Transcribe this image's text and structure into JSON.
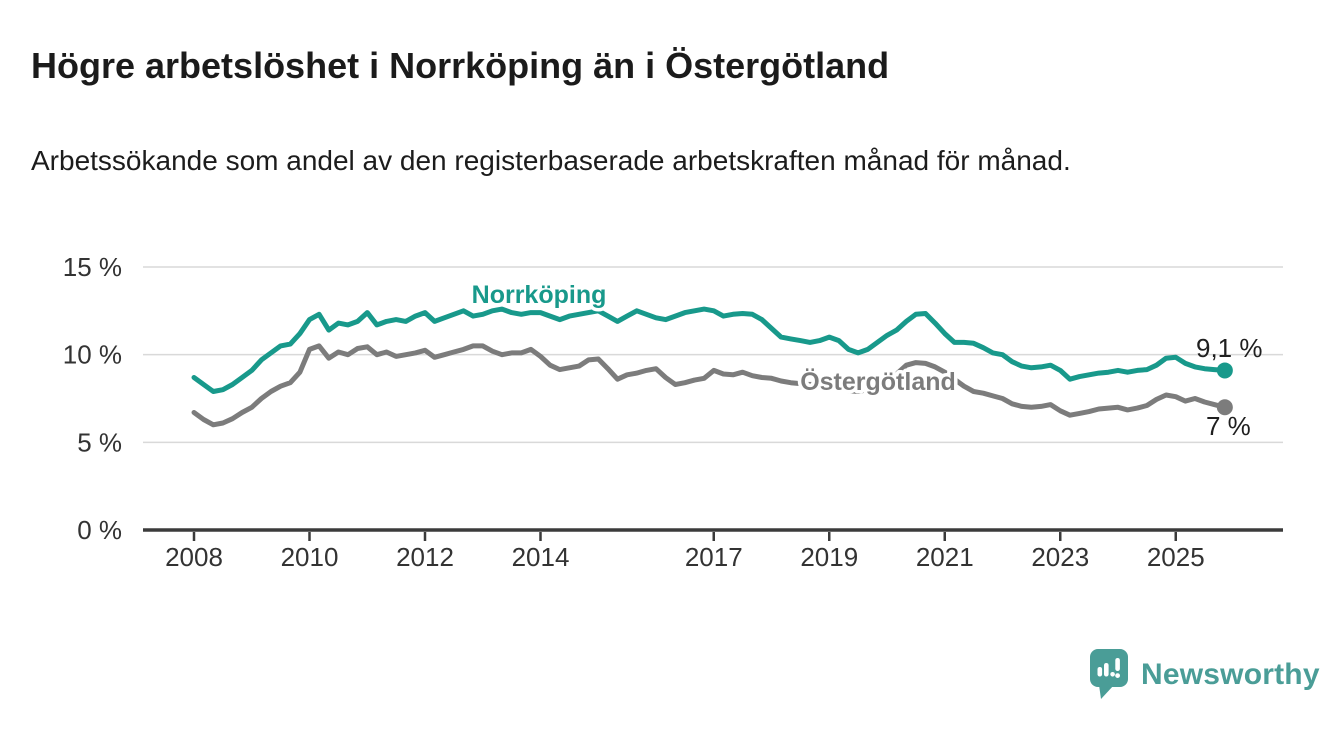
{
  "chart_data": {
    "type": "line",
    "title": "Högre arbetslöshet i Norrköping än i Östergötland",
    "subtitle": "Arbetssökande som andel av den registerbaserade arbetskraften månad för månad.",
    "grid": true,
    "legend": "inline-labels",
    "x_axis": {
      "unit": "year",
      "ticks": [
        2008,
        2010,
        2012,
        2014,
        2017,
        2019,
        2021,
        2023,
        2025
      ]
    },
    "y_axis": {
      "ticks": [
        0,
        5,
        10,
        15
      ],
      "tick_suffix": " %",
      "range": [
        0,
        15.5
      ]
    },
    "x_start": 2008,
    "x_step_years": 0.1666667,
    "x_last": 2025.85,
    "series": [
      {
        "name": "Norrköping",
        "slug": "norrkoping",
        "color": "#18998b",
        "end_value_label": "9,1 %",
        "last_value": 9.1,
        "label_anchor": {
          "x": 539,
          "y": 303
        },
        "end_label_anchor": {
          "x": 1196,
          "y": 357
        },
        "values": [
          8.7,
          8.3,
          7.9,
          8.0,
          8.3,
          8.7,
          9.1,
          9.7,
          10.1,
          10.5,
          10.6,
          11.2,
          12.0,
          12.3,
          11.4,
          11.8,
          11.7,
          11.9,
          12.4,
          11.7,
          11.9,
          12.0,
          11.9,
          12.2,
          12.4,
          11.9,
          12.1,
          12.3,
          12.5,
          12.2,
          12.3,
          12.5,
          12.6,
          12.4,
          12.3,
          12.4,
          12.4,
          12.2,
          12.0,
          12.2,
          12.3,
          12.4,
          12.5,
          12.2,
          11.9,
          12.2,
          12.5,
          12.3,
          12.1,
          12.0,
          12.2,
          12.4,
          12.5,
          12.6,
          12.5,
          12.2,
          12.3,
          12.35,
          12.3,
          12.0,
          11.5,
          11.0,
          10.9,
          10.8,
          10.7,
          10.8,
          11.0,
          10.8,
          10.3,
          10.1,
          10.3,
          10.7,
          11.1,
          11.4,
          11.9,
          12.3,
          12.35,
          11.8,
          11.2,
          10.7,
          10.7,
          10.65,
          10.4,
          10.1,
          10.0,
          9.6,
          9.35,
          9.25,
          9.3,
          9.4,
          9.1,
          8.6,
          8.75,
          8.85,
          8.95,
          9.0,
          9.1,
          9.0,
          9.1,
          9.15,
          9.4,
          9.8,
          9.85,
          9.5,
          9.3,
          9.2,
          9.15,
          9.1
        ]
      },
      {
        "name": "Östergötland",
        "slug": "ostergotland",
        "color": "#7c7c7c",
        "end_value_label": "7 %",
        "last_value": 7.0,
        "label_anchor": {
          "x": 878,
          "y": 390
        },
        "end_label_anchor": {
          "x": 1206,
          "y": 435
        },
        "values": [
          6.7,
          6.3,
          6.0,
          6.1,
          6.35,
          6.7,
          7.0,
          7.5,
          7.9,
          8.2,
          8.4,
          9.0,
          10.3,
          10.5,
          9.8,
          10.15,
          10.0,
          10.35,
          10.45,
          10.0,
          10.15,
          9.9,
          10.0,
          10.1,
          10.25,
          9.85,
          10.0,
          10.15,
          10.3,
          10.5,
          10.5,
          10.2,
          10.0,
          10.1,
          10.1,
          10.3,
          9.9,
          9.4,
          9.15,
          9.25,
          9.35,
          9.7,
          9.75,
          9.2,
          8.6,
          8.85,
          8.95,
          9.1,
          9.2,
          8.7,
          8.3,
          8.4,
          8.55,
          8.65,
          9.1,
          8.9,
          8.85,
          9.0,
          8.8,
          8.7,
          8.65,
          8.5,
          8.4,
          8.35,
          8.3,
          8.35,
          8.3,
          8.15,
          7.95,
          7.9,
          8.0,
          8.2,
          8.5,
          8.9,
          9.4,
          9.55,
          9.5,
          9.3,
          9.0,
          8.6,
          8.2,
          7.9,
          7.8,
          7.65,
          7.5,
          7.2,
          7.05,
          7.0,
          7.05,
          7.15,
          6.8,
          6.55,
          6.65,
          6.75,
          6.9,
          6.95,
          7.0,
          6.85,
          6.95,
          7.1,
          7.45,
          7.7,
          7.6,
          7.35,
          7.5,
          7.3,
          7.15,
          7.0
        ]
      }
    ]
  },
  "branding": {
    "logo_text": "Newsworthy",
    "logo_color": "#4a9d97"
  }
}
